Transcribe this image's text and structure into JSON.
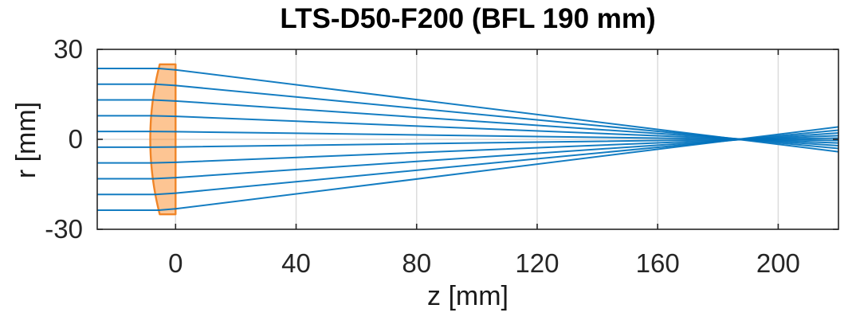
{
  "chart_data": {
    "type": "line",
    "title": "LTS-D50-F200 (BFL 190 mm)",
    "xlabel": "z [mm]",
    "ylabel": "r [mm]",
    "xlim": [
      -26,
      220
    ],
    "ylim": [
      -30,
      30
    ],
    "xticks": [
      0,
      40,
      80,
      120,
      160,
      200
    ],
    "yticks": [
      -30,
      0,
      30
    ],
    "grid": true,
    "legend": "none",
    "colors": {
      "ray": "#0072BD",
      "lens_fill": "#FB8C28",
      "lens_fill_opacity": 0.5,
      "lens_edge": "#F08527",
      "grid": "#DCDCDC",
      "axis": "#262626",
      "tick_label": "#262626"
    },
    "lens": {
      "shape": "plano-convex, convex side facing left",
      "semi_diameter_mm": 25,
      "flat_face_z_mm": 0,
      "vertex_z_mm": -8.4,
      "convex_radius_mm": 101
    },
    "rays": [
      {
        "start_r_mm": 23.625,
        "points_z_r": [
          [
            -26,
            23.625
          ],
          [
            -5.598,
            23.625
          ],
          [
            0,
            23.169
          ],
          [
            220,
            -4.138
          ]
        ]
      },
      {
        "start_r_mm": 18.375,
        "points_z_r": [
          [
            -26,
            18.375
          ],
          [
            -6.714,
            18.375
          ],
          [
            0,
            17.953
          ],
          [
            220,
            -3.064
          ]
        ]
      },
      {
        "start_r_mm": 13.125,
        "points_z_r": [
          [
            -26,
            13.125
          ],
          [
            -7.544,
            13.125
          ],
          [
            0,
            12.789
          ],
          [
            220,
            -2.108
          ]
        ]
      },
      {
        "start_r_mm": 7.875,
        "points_z_r": [
          [
            -26,
            7.875
          ],
          [
            -8.093,
            7.875
          ],
          [
            0,
            7.66
          ],
          [
            220,
            -1.234
          ]
        ]
      },
      {
        "start_r_mm": 2.625,
        "points_z_r": [
          [
            -26,
            2.625
          ],
          [
            -8.366,
            2.625
          ],
          [
            0,
            2.551
          ],
          [
            220,
            -0.407
          ]
        ]
      },
      {
        "start_r_mm": -2.625,
        "points_z_r": [
          [
            -26,
            -2.625
          ],
          [
            -8.366,
            -2.625
          ],
          [
            0,
            -2.551
          ],
          [
            220,
            0.407
          ]
        ]
      },
      {
        "start_r_mm": -7.875,
        "points_z_r": [
          [
            -26,
            -7.875
          ],
          [
            -8.093,
            -7.875
          ],
          [
            0,
            -7.66
          ],
          [
            220,
            1.234
          ]
        ]
      },
      {
        "start_r_mm": -13.125,
        "points_z_r": [
          [
            -26,
            -13.125
          ],
          [
            -7.544,
            -13.125
          ],
          [
            0,
            -12.789
          ],
          [
            220,
            2.108
          ]
        ]
      },
      {
        "start_r_mm": -18.375,
        "points_z_r": [
          [
            -26,
            -18.375
          ],
          [
            -6.714,
            -18.375
          ],
          [
            0,
            -17.953
          ],
          [
            220,
            3.064
          ]
        ]
      },
      {
        "start_r_mm": -23.625,
        "points_z_r": [
          [
            -26,
            -23.625
          ],
          [
            -5.598,
            -23.625
          ],
          [
            0,
            -23.169
          ],
          [
            220,
            4.138
          ]
        ]
      }
    ]
  }
}
